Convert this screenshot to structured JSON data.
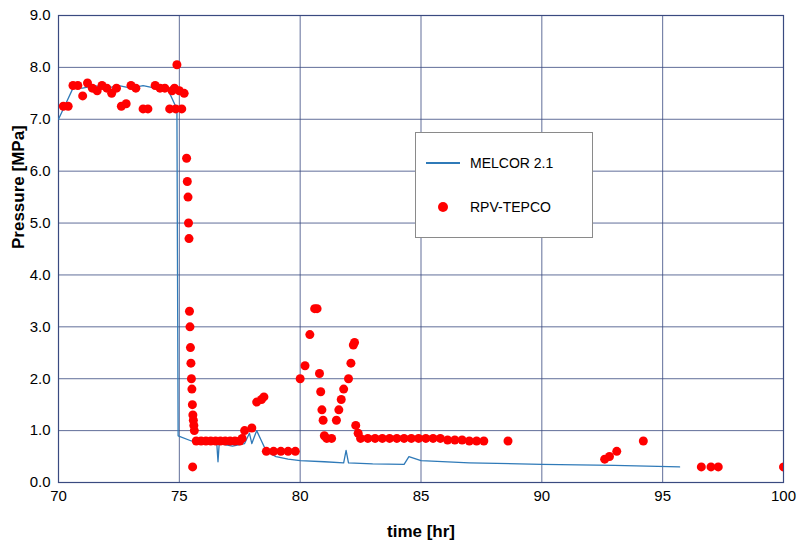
{
  "chart_data": {
    "type": "line",
    "x_label": "time [hr]",
    "y_label": "Pressure [MPa]",
    "xlim": [
      70,
      100
    ],
    "xticks": [
      70,
      75,
      80,
      85,
      90,
      95,
      100
    ],
    "ylim": [
      0,
      9
    ],
    "yticks": [
      0,
      1,
      2,
      3,
      4,
      5,
      6,
      7,
      8,
      9
    ],
    "grid": true,
    "legend": "right",
    "series": [
      {
        "name": "MELCOR 2.1",
        "type": "line",
        "color": "#2f7ab8",
        "marker": "none",
        "line_style": "solid",
        "x": [
          70.0,
          70.3,
          70.6,
          71.0,
          71.5,
          72.0,
          72.5,
          73.0,
          73.5,
          74.0,
          74.5,
          74.9,
          74.95,
          75.5,
          76.0,
          76.55,
          76.6,
          76.65,
          77.2,
          77.7,
          77.9,
          78.0,
          78.2,
          78.4,
          78.6,
          79.0,
          79.5,
          80.0,
          81.0,
          81.8,
          81.9,
          82.0,
          83.0,
          84.3,
          84.5,
          85.0,
          87.0,
          90.0,
          93.0,
          95.7
        ],
        "values": [
          7.0,
          7.3,
          7.6,
          7.6,
          7.65,
          7.6,
          7.65,
          7.6,
          7.65,
          7.6,
          7.6,
          7.2,
          0.9,
          0.8,
          0.75,
          0.75,
          0.4,
          0.75,
          0.7,
          0.75,
          0.95,
          0.75,
          1.0,
          0.8,
          0.6,
          0.5,
          0.45,
          0.42,
          0.4,
          0.38,
          0.62,
          0.38,
          0.36,
          0.35,
          0.5,
          0.42,
          0.38,
          0.35,
          0.33,
          0.3
        ]
      },
      {
        "name": "RPV-TEPCO",
        "type": "scatter",
        "color": "#ff0000",
        "marker": "circle",
        "x": [
          70.2,
          70.4,
          70.6,
          70.8,
          71.0,
          71.2,
          71.4,
          71.6,
          71.8,
          72.0,
          72.2,
          72.4,
          72.6,
          72.8,
          73.0,
          73.2,
          73.5,
          73.7,
          74.0,
          74.2,
          74.4,
          74.6,
          74.7,
          74.8,
          74.85,
          74.9,
          75.0,
          75.1,
          75.2,
          75.3,
          75.33,
          75.36,
          75.38,
          75.4,
          75.42,
          75.44,
          75.46,
          75.48,
          75.5,
          75.52,
          75.54,
          75.56,
          75.58,
          75.6,
          75.62,
          75.55,
          75.7,
          75.9,
          76.1,
          76.3,
          76.5,
          76.7,
          76.9,
          77.1,
          77.3,
          77.5,
          77.6,
          77.7,
          78.0,
          78.2,
          78.4,
          78.5,
          78.6,
          78.9,
          79.2,
          79.5,
          79.8,
          80.0,
          80.2,
          80.4,
          80.6,
          80.7,
          80.8,
          80.85,
          80.9,
          80.95,
          81.0,
          81.1,
          81.3,
          81.5,
          81.6,
          81.7,
          81.8,
          82.0,
          82.1,
          82.2,
          82.25,
          82.3,
          82.4,
          82.5,
          82.8,
          83.1,
          83.4,
          83.7,
          84.0,
          84.3,
          84.6,
          84.9,
          85.2,
          85.5,
          85.8,
          86.1,
          86.4,
          86.7,
          87.0,
          87.3,
          87.6,
          88.6,
          92.6,
          92.8,
          93.1,
          94.2,
          96.6,
          97.0,
          97.3,
          100.0
        ],
        "values": [
          7.25,
          7.25,
          7.65,
          7.65,
          7.45,
          7.7,
          7.6,
          7.55,
          7.65,
          7.6,
          7.5,
          7.6,
          7.25,
          7.3,
          7.65,
          7.6,
          7.2,
          7.2,
          7.65,
          7.6,
          7.6,
          7.2,
          7.55,
          7.6,
          7.2,
          8.05,
          7.55,
          7.2,
          7.5,
          6.25,
          5.8,
          5.5,
          5.0,
          4.7,
          3.3,
          3.0,
          2.6,
          2.3,
          2.0,
          1.8,
          1.5,
          1.3,
          1.2,
          1.1,
          1.0,
          0.3,
          0.8,
          0.8,
          0.8,
          0.8,
          0.8,
          0.8,
          0.8,
          0.8,
          0.8,
          0.8,
          0.85,
          1.0,
          1.05,
          1.55,
          1.6,
          1.65,
          0.6,
          0.6,
          0.6,
          0.6,
          0.6,
          2.0,
          2.25,
          2.85,
          3.35,
          3.35,
          2.1,
          1.75,
          1.4,
          1.2,
          0.9,
          0.85,
          0.85,
          1.2,
          1.4,
          1.6,
          1.8,
          2.0,
          2.3,
          2.65,
          2.7,
          1.1,
          0.95,
          0.85,
          0.85,
          0.85,
          0.85,
          0.85,
          0.85,
          0.85,
          0.85,
          0.85,
          0.85,
          0.85,
          0.85,
          0.82,
          0.82,
          0.82,
          0.8,
          0.8,
          0.8,
          0.8,
          0.45,
          0.5,
          0.6,
          0.8,
          0.3,
          0.3,
          0.3,
          0.3
        ]
      }
    ]
  }
}
